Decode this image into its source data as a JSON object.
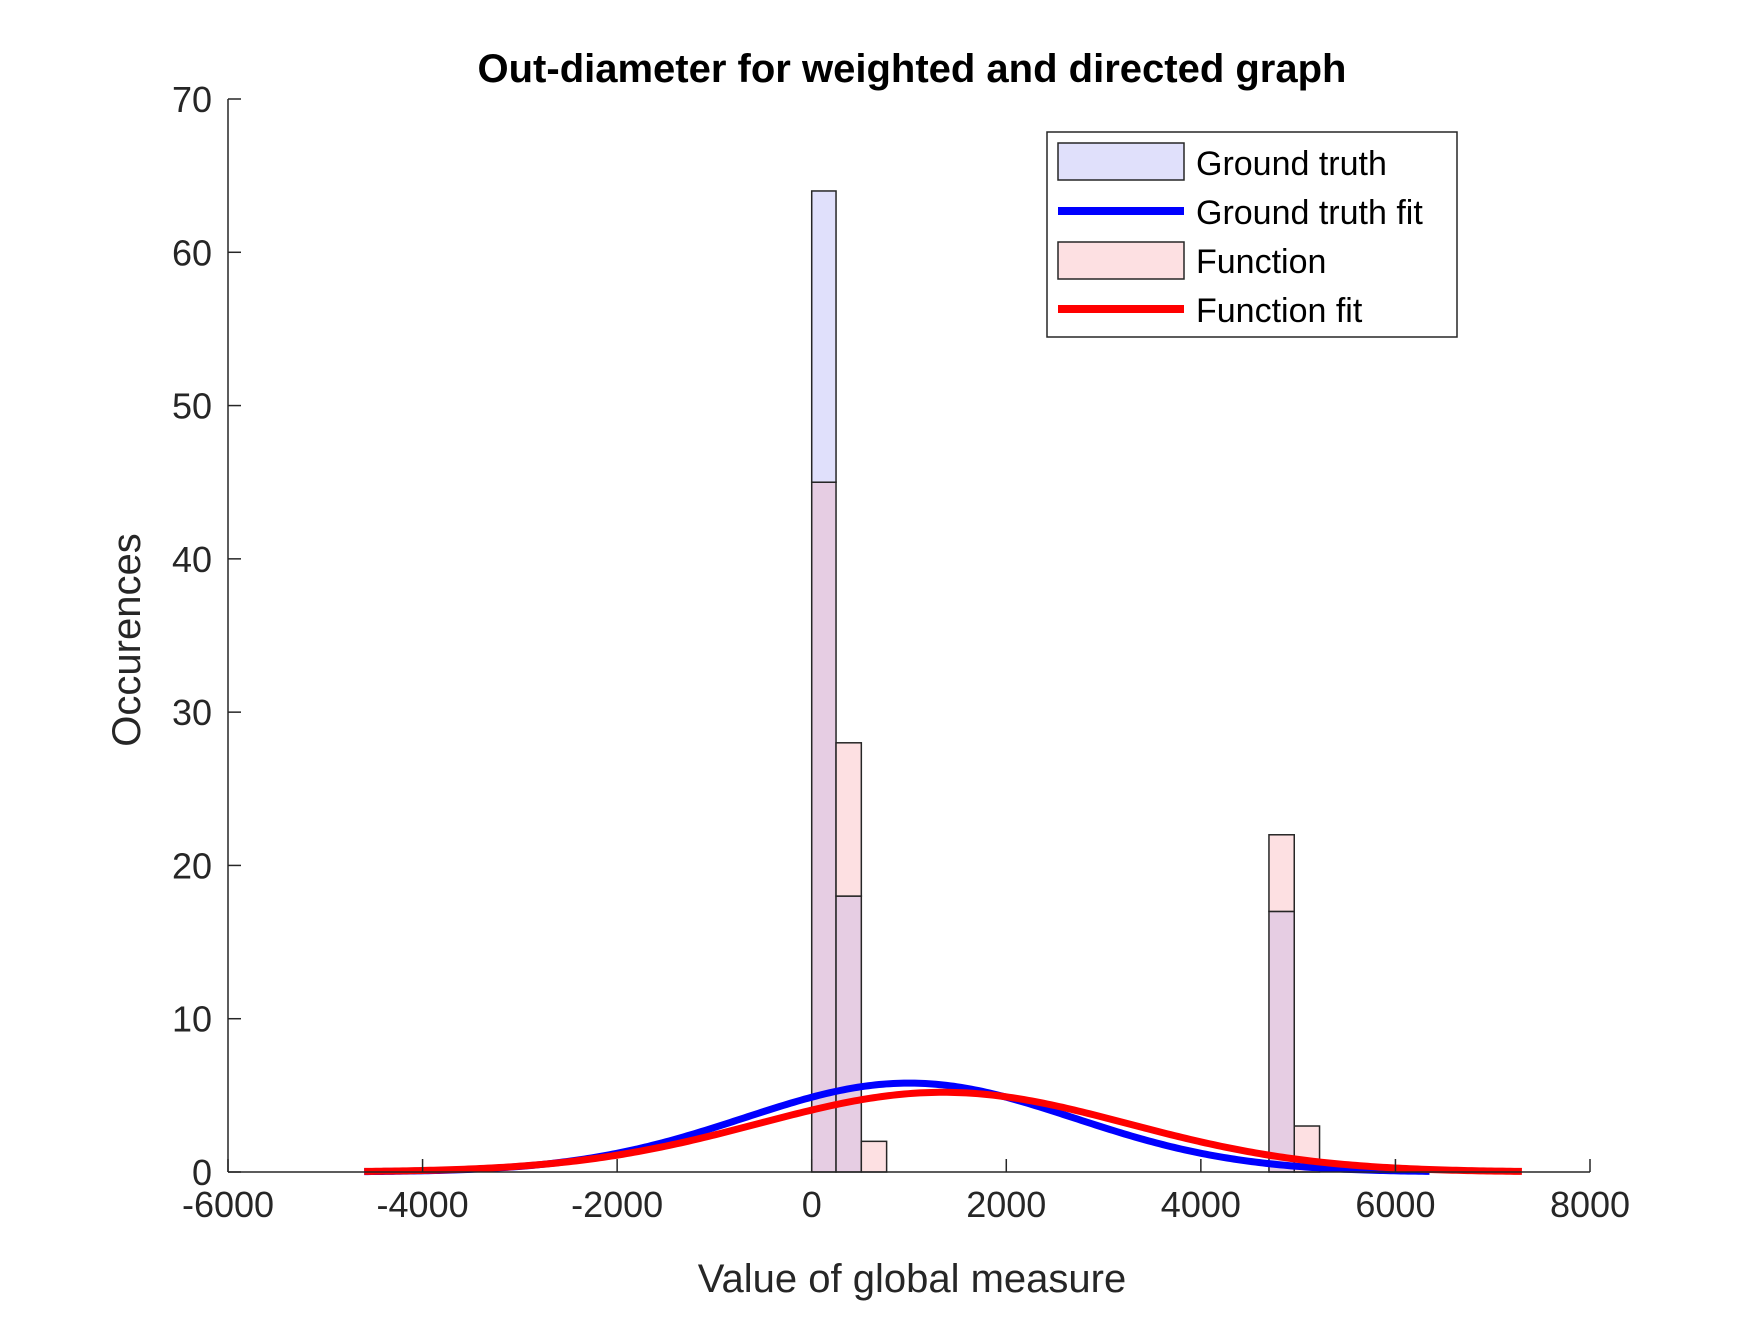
{
  "chart_data": {
    "type": "bar",
    "title": "Out-diameter for weighted and directed graph",
    "xlabel": "Value of global measure",
    "ylabel": "Occurences",
    "xlim": [
      -6000,
      8000
    ],
    "ylim": [
      0,
      70
    ],
    "xticks": [
      -6000,
      -4000,
      -2000,
      0,
      2000,
      4000,
      6000,
      8000
    ],
    "yticks": [
      0,
      10,
      20,
      30,
      40,
      50,
      60,
      70
    ],
    "xtick_labels": [
      "-6000",
      "-4000",
      "-2000",
      "0",
      "2000",
      "4000",
      "6000",
      "8000"
    ],
    "ytick_labels": [
      "0",
      "10",
      "20",
      "30",
      "40",
      "50",
      "60",
      "70"
    ],
    "grid": false,
    "legend_position": "top-right",
    "series": [
      {
        "name": "Ground truth",
        "kind": "histogram",
        "color": "#0000ff",
        "face_color": "#e0e0fb",
        "bins": [
          {
            "x0": 0,
            "x1": 250,
            "count": 64
          },
          {
            "x0": 250,
            "x1": 510,
            "count": 18
          },
          {
            "x0": 4700,
            "x1": 4960,
            "count": 17
          }
        ]
      },
      {
        "name": "Ground truth fit",
        "kind": "curve",
        "color": "#0000ff",
        "mu": 1000,
        "sigma": 1700,
        "peak": 5.8,
        "x_start": -4600,
        "x_end": 6350
      },
      {
        "name": "Function",
        "kind": "histogram",
        "color": "#ff0000",
        "face_color": "#fde0e2",
        "bins": [
          {
            "x0": 0,
            "x1": 250,
            "count": 45
          },
          {
            "x0": 250,
            "x1": 510,
            "count": 28
          },
          {
            "x0": 510,
            "x1": 770,
            "count": 2
          },
          {
            "x0": 4700,
            "x1": 4960,
            "count": 22
          },
          {
            "x0": 4960,
            "x1": 5220,
            "count": 3
          }
        ]
      },
      {
        "name": "Function fit",
        "kind": "curve",
        "color": "#ff0000",
        "mu": 1350,
        "sigma": 1900,
        "peak": 5.2,
        "x_start": -4600,
        "x_end": 7300
      }
    ],
    "overlap_color": "#e6cde3"
  }
}
